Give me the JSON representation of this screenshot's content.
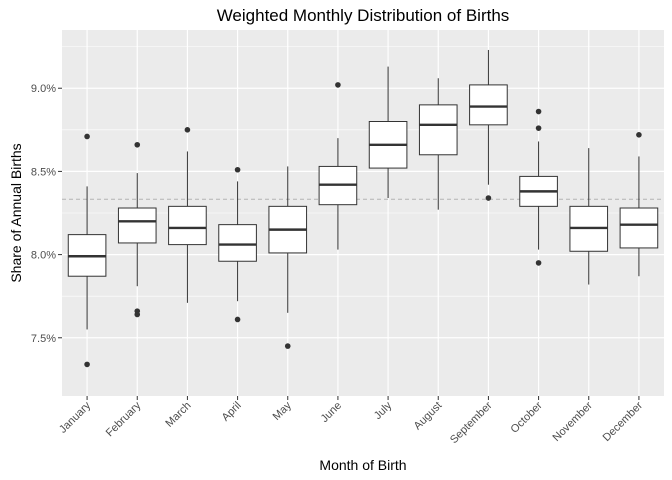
{
  "chart_data": {
    "type": "boxplot",
    "title": "Weighted Monthly Distribution of Births",
    "xlabel": "Month of Birth",
    "ylabel": "Share of Annual Births",
    "ylim": [
      7.15,
      9.35
    ],
    "yticks": [
      7.5,
      8.0,
      8.5,
      9.0
    ],
    "ytick_labels": [
      "7.5%",
      "8.0%",
      "8.5%",
      "9.0%"
    ],
    "reference_line": 8.333,
    "grid": true,
    "background_color": "#ebebeb",
    "grid_color": "#ffffff",
    "box_fill": "#ffffff",
    "box_stroke": "#333333",
    "reference_line_color": "#b3b3b3",
    "categories": [
      "January",
      "February",
      "March",
      "April",
      "May",
      "June",
      "July",
      "August",
      "September",
      "October",
      "November",
      "December"
    ],
    "boxes": [
      {
        "min": 7.55,
        "q1": 7.87,
        "median": 7.99,
        "q3": 8.12,
        "max": 8.41,
        "outliers": [
          8.71,
          7.34
        ]
      },
      {
        "min": 7.81,
        "q1": 8.07,
        "median": 8.2,
        "q3": 8.28,
        "max": 8.49,
        "outliers": [
          8.66,
          7.66,
          7.64
        ]
      },
      {
        "min": 7.71,
        "q1": 8.06,
        "median": 8.16,
        "q3": 8.29,
        "max": 8.62,
        "outliers": [
          8.75
        ]
      },
      {
        "min": 7.72,
        "q1": 7.96,
        "median": 8.06,
        "q3": 8.18,
        "max": 8.44,
        "outliers": [
          8.51,
          7.61
        ]
      },
      {
        "min": 7.65,
        "q1": 8.01,
        "median": 8.15,
        "q3": 8.29,
        "max": 8.53,
        "outliers": [
          7.45
        ]
      },
      {
        "min": 8.03,
        "q1": 8.3,
        "median": 8.42,
        "q3": 8.53,
        "max": 8.7,
        "outliers": [
          9.02
        ]
      },
      {
        "min": 8.34,
        "q1": 8.52,
        "median": 8.66,
        "q3": 8.8,
        "max": 9.13,
        "outliers": []
      },
      {
        "min": 8.27,
        "q1": 8.6,
        "median": 8.78,
        "q3": 8.9,
        "max": 9.06,
        "outliers": []
      },
      {
        "min": 8.42,
        "q1": 8.78,
        "median": 8.89,
        "q3": 9.02,
        "max": 9.23,
        "outliers": [
          8.34
        ]
      },
      {
        "min": 8.03,
        "q1": 8.29,
        "median": 8.38,
        "q3": 8.47,
        "max": 8.68,
        "outliers": [
          8.86,
          8.76,
          7.95
        ]
      },
      {
        "min": 7.82,
        "q1": 8.02,
        "median": 8.16,
        "q3": 8.29,
        "max": 8.64,
        "outliers": []
      },
      {
        "min": 7.87,
        "q1": 8.04,
        "median": 8.18,
        "q3": 8.28,
        "max": 8.59,
        "outliers": [
          8.72
        ]
      }
    ]
  }
}
